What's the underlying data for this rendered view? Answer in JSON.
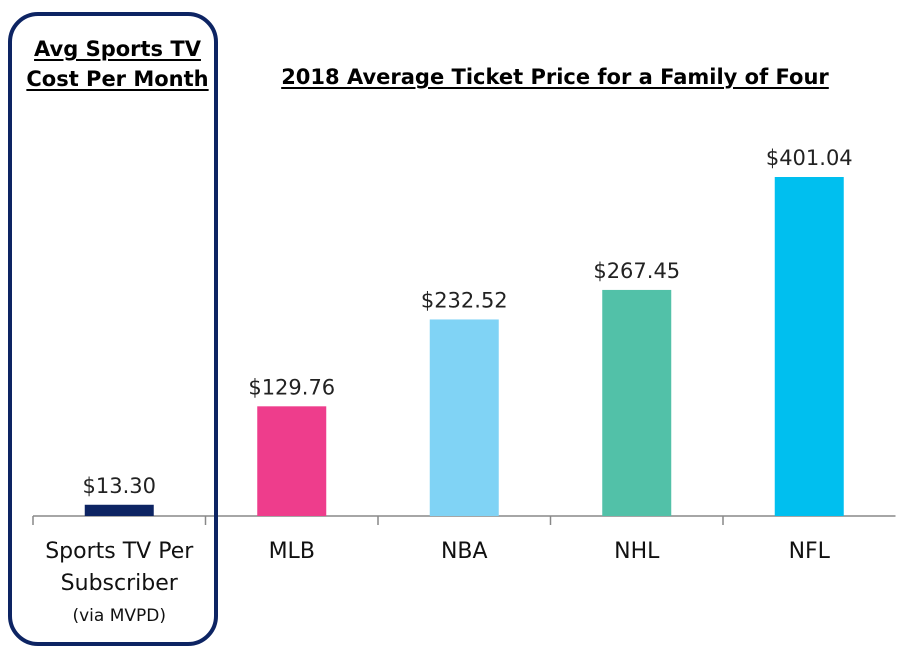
{
  "chart_data": {
    "type": "bar",
    "title": "2018 Average Ticket Price for a Family of Four",
    "left_panel_title": "Avg Sports TV Cost Per Month",
    "xlabel": "",
    "ylabel": "",
    "ylim": [
      0,
      401.04
    ],
    "grid": false,
    "categories": [
      "Sports TV Per Subscriber",
      "MLB",
      "NBA",
      "NHL",
      "NFL"
    ],
    "category_sublabels": [
      "(via MVPD)",
      "",
      "",
      "",
      ""
    ],
    "values": [
      13.3,
      129.76,
      232.52,
      267.45,
      401.04
    ],
    "value_labels": [
      "$13.30",
      "$129.76",
      "$232.52",
      "$267.45",
      "$401.04"
    ],
    "colors": [
      "#0d2463",
      "#ee3d8c",
      "#80d3f5",
      "#52c1a8",
      "#00bfef"
    ]
  }
}
